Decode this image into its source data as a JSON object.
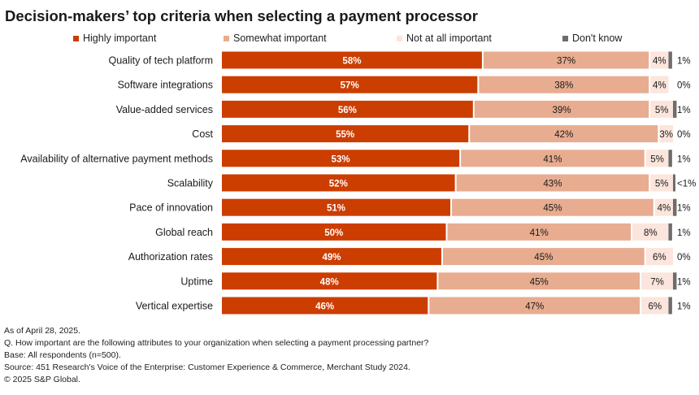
{
  "chart_data": {
    "type": "bar",
    "orientation": "horizontal",
    "stacked": true,
    "title": "Decision-makers’ top criteria when selecting a payment processor",
    "categories": [
      "Quality of tech platform",
      "Software integrations",
      "Value-added services",
      "Cost",
      "Availability of alternative payment methods",
      "Scalability",
      "Pace of innovation",
      "Global reach",
      "Authorization rates",
      "Uptime",
      "Vertical expertise"
    ],
    "series": [
      {
        "name": "Highly important",
        "color": "#cc3d00",
        "label_color": "#ffffff",
        "values": [
          58,
          57,
          56,
          55,
          53,
          52,
          51,
          50,
          49,
          48,
          46
        ],
        "labels": [
          "58%",
          "57%",
          "56%",
          "55%",
          "53%",
          "52%",
          "51%",
          "50%",
          "49%",
          "48%",
          "46%"
        ]
      },
      {
        "name": "Somewhat important",
        "color": "#e8ac90",
        "label_color": "#1a1a1a",
        "values": [
          37,
          38,
          39,
          42,
          41,
          43,
          45,
          41,
          45,
          45,
          47
        ],
        "labels": [
          "37%",
          "38%",
          "39%",
          "42%",
          "41%",
          "43%",
          "45%",
          "41%",
          "45%",
          "45%",
          "47%"
        ]
      },
      {
        "name": "Not at all important",
        "color": "#fbe5dc",
        "label_color": "#1a1a1a",
        "values": [
          4,
          4,
          5,
          3,
          5,
          5,
          4,
          8,
          6,
          7,
          6
        ],
        "labels": [
          "4%",
          "4%",
          "5%",
          "3%",
          "5%",
          "5%",
          "4%",
          "8%",
          "6%",
          "7%",
          "6%"
        ]
      },
      {
        "name": "Don't know",
        "color": "#6d6d6d",
        "label_color": "#1a1a1a",
        "values": [
          1,
          0,
          1,
          0,
          1,
          0.5,
          1,
          1,
          0,
          1,
          1
        ],
        "labels": [
          "1%",
          "0%",
          "1%",
          "0%",
          "1%",
          "<1%",
          "1%",
          "1%",
          "0%",
          "1%",
          "1%"
        ]
      }
    ],
    "xlim": [
      0,
      100
    ],
    "legend_position": "top"
  },
  "footnotes": [
    "As of April 28, 2025.",
    "Q. How important are the following attributes to your organization when selecting a payment processing partner?",
    "Base: All respondents (n=500).",
    "Source: 451 Research's Voice of the Enterprise: Customer Experience & Commerce, Merchant Study 2024.",
    "© 2025 S&P Global."
  ]
}
